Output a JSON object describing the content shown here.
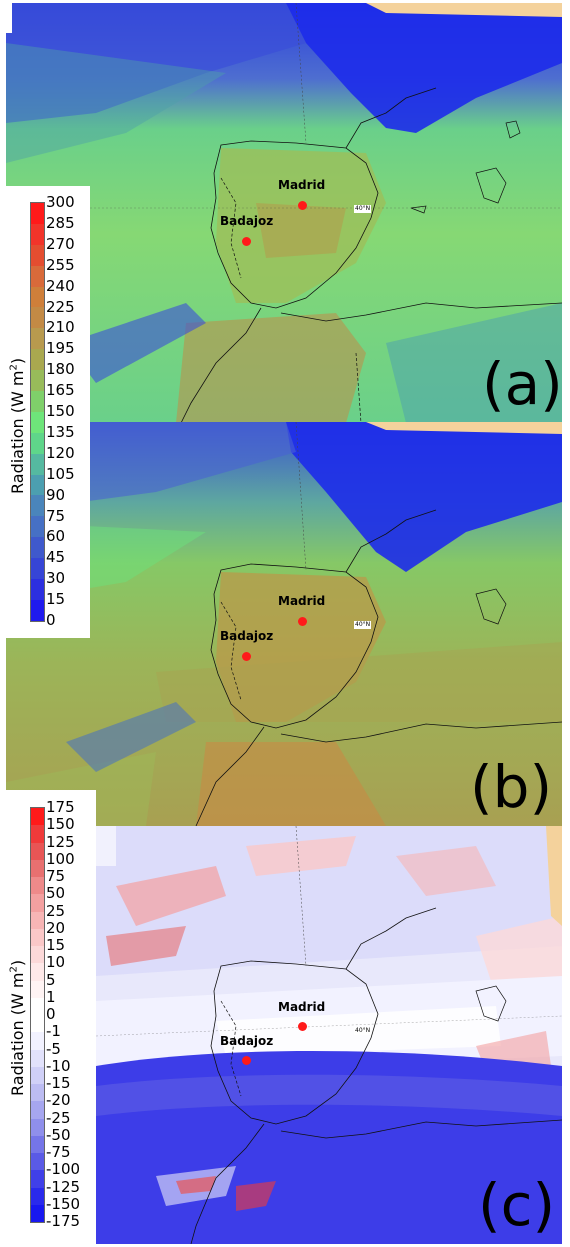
{
  "cities": {
    "madrid": "Madrid",
    "badajoz": "Badajoz"
  },
  "lat_label": "40°N",
  "panels": {
    "a": "(a)",
    "b": "(b)",
    "c": "(c)"
  },
  "colorbar_top": {
    "title": "Radiation (W m",
    "title_sup": "2",
    "title_close": ")",
    "ticks": [
      "300",
      "285",
      "270",
      "255",
      "240",
      "225",
      "210",
      "195",
      "180",
      "165",
      "150",
      "135",
      "120",
      "105",
      "90",
      "75",
      "60",
      "45",
      "30",
      "15",
      "0"
    ],
    "colors": [
      "#ff1a1a",
      "#f2342a",
      "#e44d30",
      "#d96a3a",
      "#cf7f3a",
      "#c38a45",
      "#b89a4e",
      "#a9a84f",
      "#98bb5a",
      "#7fd06a",
      "#6ee57a",
      "#5fd68a",
      "#55b9a0",
      "#4c9fb0",
      "#4a85bb",
      "#4670c4",
      "#3f59cc",
      "#3645d6",
      "#2c2fe0",
      "#1f1aee"
    ]
  },
  "colorbar_bottom": {
    "title": "Radiation (W m",
    "title_sup": "2",
    "title_close": ")",
    "ticks": [
      "175",
      "150",
      "125",
      "100",
      "75",
      "50",
      "25",
      "20",
      "15",
      "10",
      "5",
      "1",
      "0",
      "-1",
      "-5",
      "-10",
      "-15",
      "-20",
      "-25",
      "-50",
      "-75",
      "-100",
      "-125",
      "-150",
      "-175"
    ],
    "colors": [
      "#ff1a1a",
      "#f03a3a",
      "#e85555",
      "#e87070",
      "#ee8a8a",
      "#f3a0a0",
      "#f7b5b5",
      "#fac8c8",
      "#fcd9d9",
      "#fee9e9",
      "#fff4f4",
      "#ffffff",
      "#ffffff",
      "#f2f2ff",
      "#e2e2fb",
      "#d0d0f7",
      "#bcbcf2",
      "#a6a6ef",
      "#8f8feb",
      "#7575e8",
      "#5a5ae6",
      "#4040e8",
      "#2a2aec",
      "#1818f0"
    ]
  },
  "chart_data": {
    "type": "heatmap",
    "panels": [
      "(a)",
      "(b)",
      "(c)"
    ],
    "colorbar_top": {
      "label": "Radiation (W m-2)",
      "min": 0,
      "max": 300,
      "step": 15
    },
    "colorbar_bottom": {
      "label": "Radiation (W m-2)",
      "min": -175,
      "max": 175
    },
    "points": [
      {
        "name": "Madrid"
      },
      {
        "name": "Badajoz"
      }
    ]
  }
}
